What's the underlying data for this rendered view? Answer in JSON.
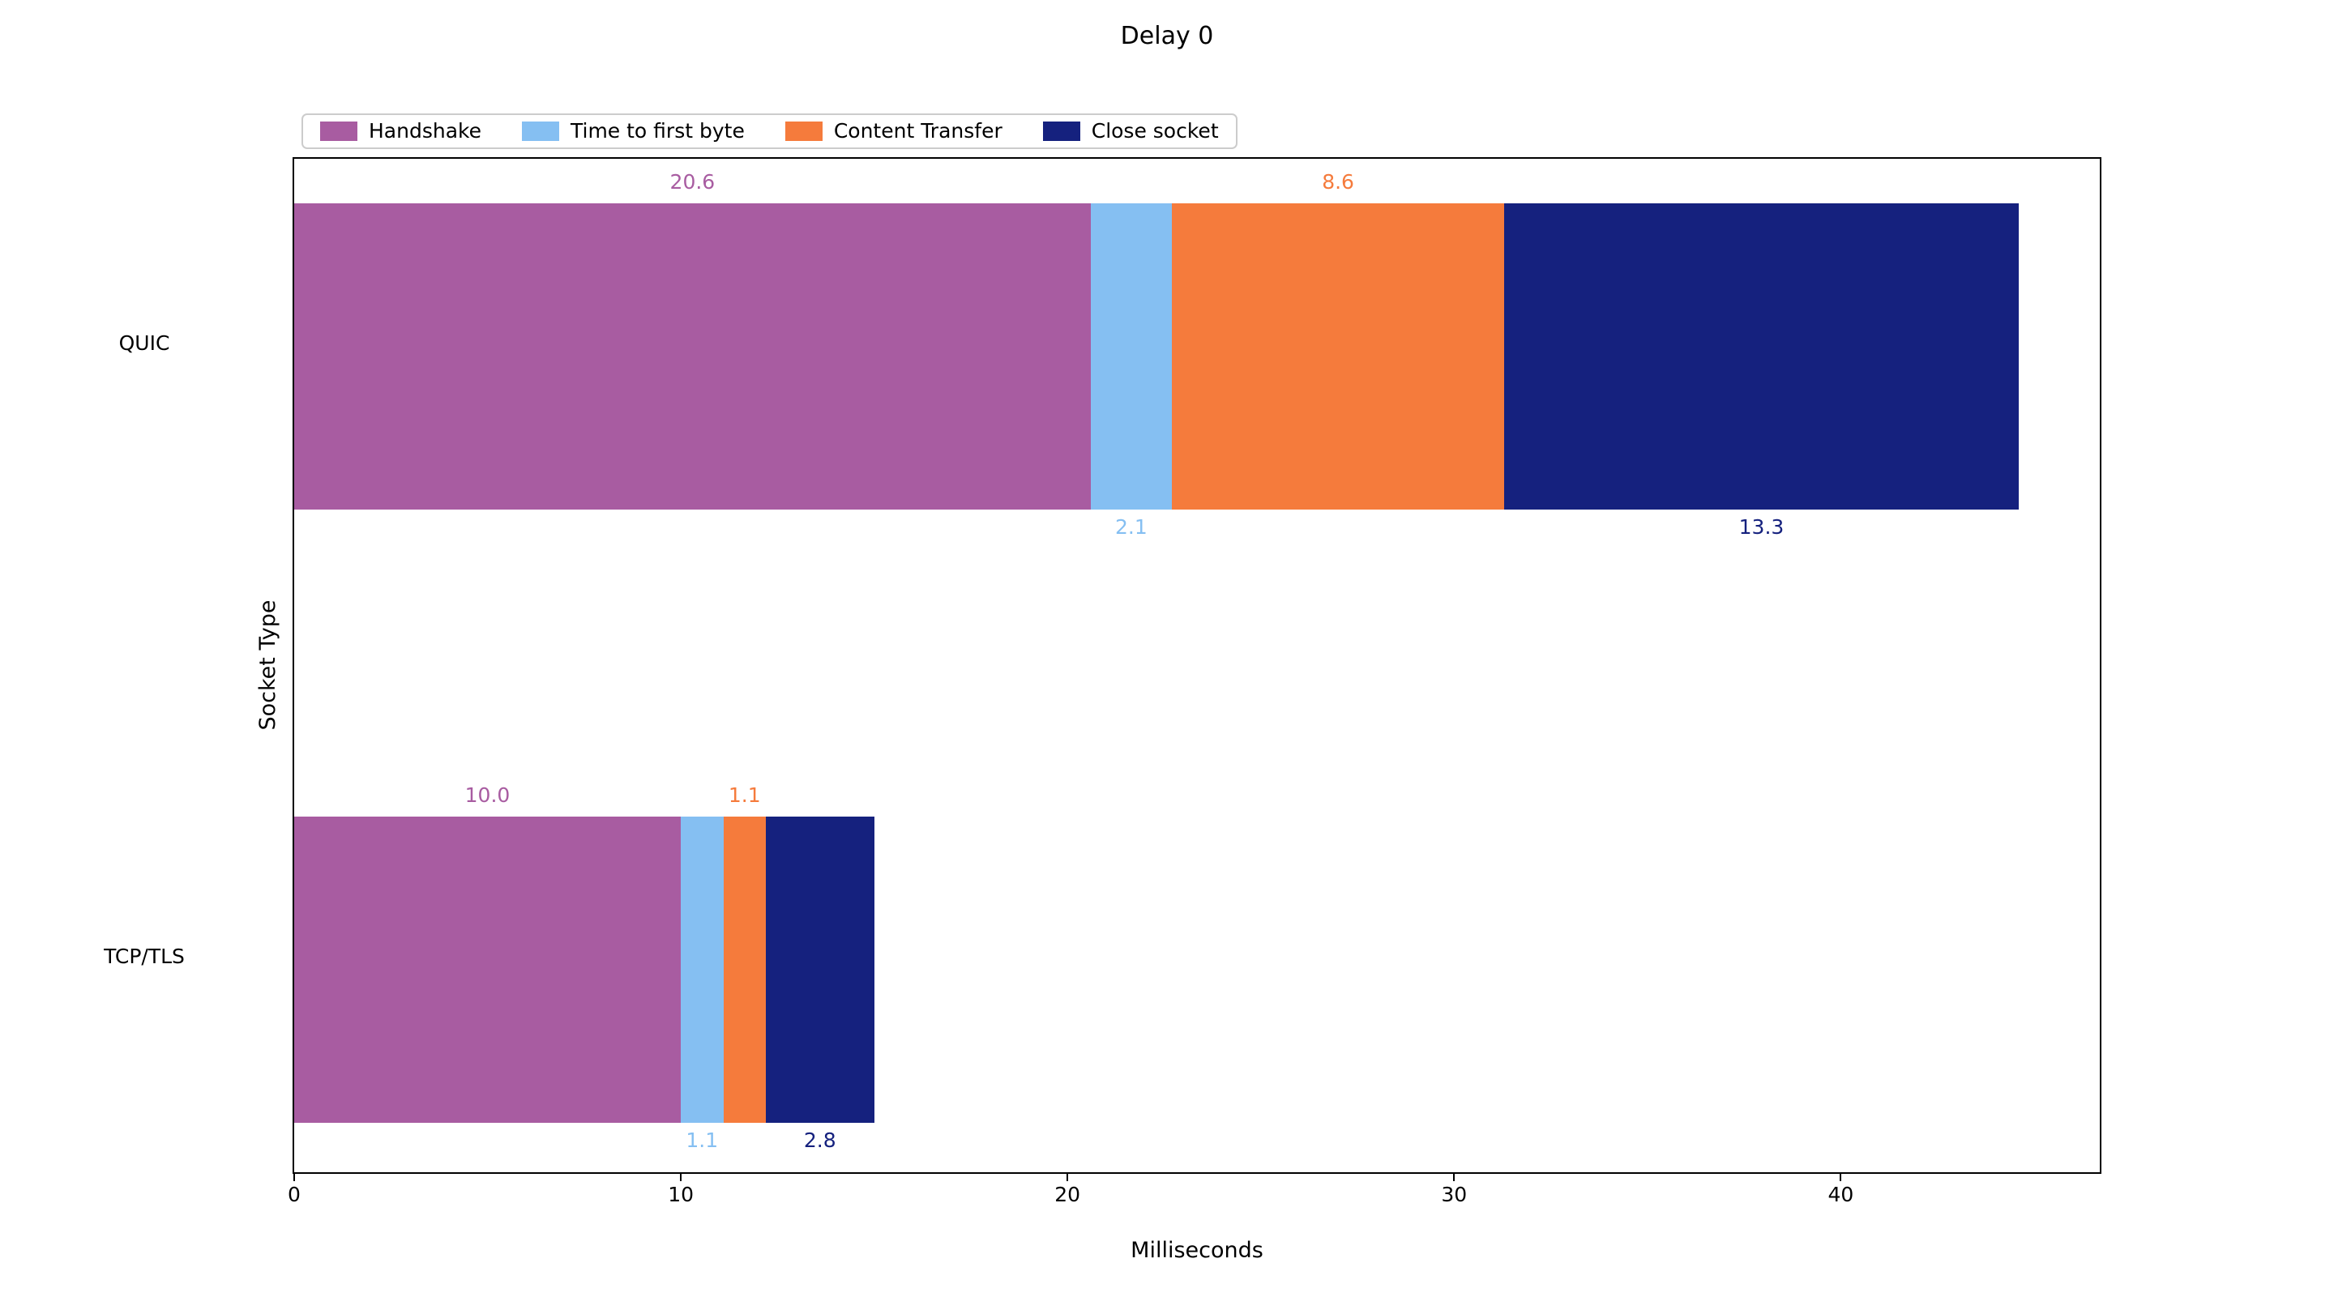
{
  "chart_data": {
    "type": "bar",
    "orientation": "horizontal",
    "stacked": true,
    "title": "Delay 0",
    "xlabel": "Milliseconds",
    "ylabel": "Socket Type",
    "categories": [
      "QUIC",
      "TCP/TLS"
    ],
    "series": [
      {
        "name": "Handshake",
        "color": "#A85CA1",
        "values": [
          20.6,
          10.0
        ],
        "value_label_position": "above"
      },
      {
        "name": "Time to first byte",
        "color": "#85BFF2",
        "values": [
          2.1,
          1.1
        ],
        "value_label_position": "below"
      },
      {
        "name": "Content Transfer",
        "color": "#F57B3C",
        "values": [
          8.6,
          1.1
        ],
        "value_label_position": "above"
      },
      {
        "name": "Close socket",
        "color": "#15217E",
        "values": [
          13.3,
          2.8
        ],
        "value_label_position": "below"
      }
    ],
    "x_ticks": [
      0,
      10,
      20,
      30,
      40
    ],
    "xlim": [
      0,
      46.7
    ],
    "grid": false,
    "legend_position": "upper left",
    "value_label_format": "one-decimal",
    "totals": {
      "QUIC": 44.6,
      "TCP/TLS": 15.0
    },
    "axis_color": "#000000",
    "background_color": "#ffffff"
  }
}
